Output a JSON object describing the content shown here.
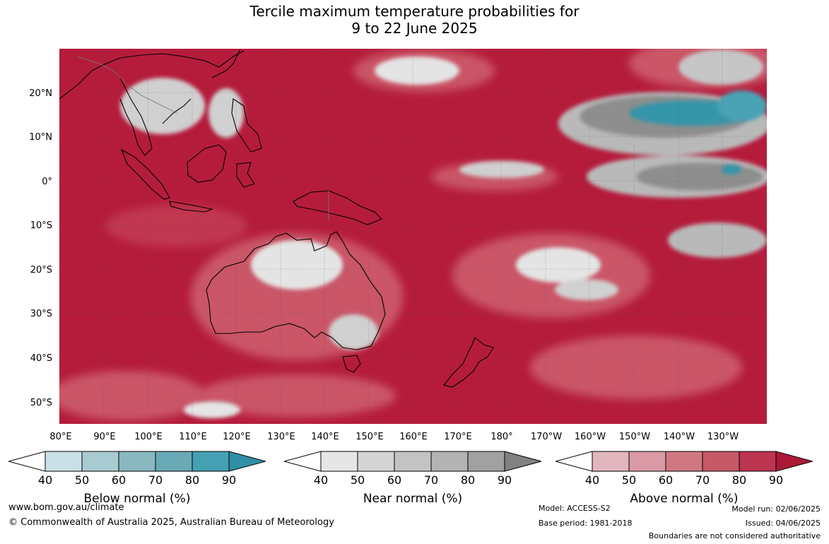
{
  "title": {
    "line1": "Tercile maximum temperature probabilities for",
    "line2": "9 to 22 June 2025"
  },
  "map": {
    "lat_labels": [
      "20°N",
      "10°N",
      "0°",
      "10°S",
      "20°S",
      "30°S",
      "40°S",
      "50°S"
    ],
    "lon_labels": [
      "80°E",
      "90°E",
      "100°E",
      "110°E",
      "120°E",
      "130°E",
      "140°E",
      "150°E",
      "160°E",
      "170°E",
      "180°",
      "170°W",
      "160°W",
      "150°W",
      "140°W",
      "130°W"
    ],
    "colors": {
      "above_90": "#b51c3c",
      "above_80": "#c33a52",
      "above_70": "#cd5d6d",
      "above_60": "#d77b88",
      "near_80": "#8e8e8e",
      "near_60": "#b9b9b9",
      "near_40": "#e4e4e4",
      "below_80": "#3595a9"
    }
  },
  "legends": [
    {
      "label": "Below normal (%)",
      "ticks": [
        "40",
        "50",
        "60",
        "70",
        "80",
        "90"
      ],
      "colors": [
        "#c9e0e7",
        "#a8cad1",
        "#8ab8c0",
        "#6aa9b6",
        "#45a0b3",
        "#2f8fa6"
      ]
    },
    {
      "label": "Near normal (%)",
      "ticks": [
        "40",
        "50",
        "60",
        "70",
        "80",
        "90"
      ],
      "colors": [
        "#e6e6e6",
        "#d4d4d4",
        "#c3c3c3",
        "#b3b3b3",
        "#a1a1a1",
        "#818181"
      ]
    },
    {
      "label": "Above normal (%)",
      "ticks": [
        "40",
        "50",
        "60",
        "70",
        "80",
        "90"
      ],
      "colors": [
        "#e2b6be",
        "#d99aa5",
        "#cf7882",
        "#c55968",
        "#bb3550",
        "#ab1937"
      ]
    }
  ],
  "footer": {
    "website": "www.bom.gov.au/climate",
    "copyright": "© Commonwealth of Australia 2025, Australian Bureau of Meteorology",
    "model": "Model: ACCESS-S2",
    "base_period": "Base period: 1981-2018",
    "model_run": "Model run: 02/06/2025",
    "issued": "Issued: 04/06/2025",
    "disclaimer": "Boundaries are not considered authoritative"
  }
}
